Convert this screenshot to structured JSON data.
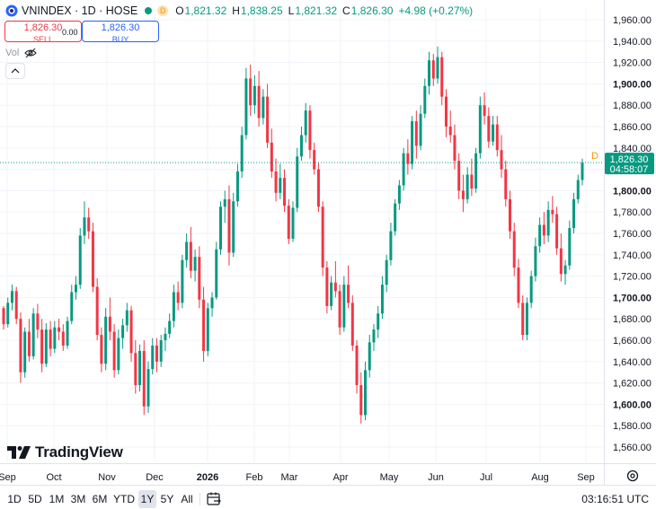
{
  "header": {
    "symbol": "VNINDEX · 1D · HOSE",
    "market_status_badge": "D",
    "open_label": "O",
    "open": "1,821.32",
    "high_label": "H",
    "high": "1,838.25",
    "low_label": "L",
    "low": "1,821.32",
    "close_label": "C",
    "close": "1,826.30",
    "change": "+4.98 (+0.27%)"
  },
  "trade": {
    "sell_price": "1,826.30",
    "sell_label": "SELL",
    "spread": "0.00",
    "buy_price": "1,826.30",
    "buy_label": "BUY"
  },
  "volume_label": "Vol",
  "chart_data": {
    "type": "candlestick",
    "title": "",
    "ylim": [
      1550,
      1970
    ],
    "y_ticks": [
      1560,
      1580,
      1600,
      1620,
      1640,
      1660,
      1680,
      1700,
      1720,
      1740,
      1760,
      1780,
      1800,
      1820,
      1840,
      1860,
      1880,
      1900,
      1920,
      1940,
      1960
    ],
    "y_tick_labels": [
      "1,560.00",
      "1,580.00",
      "1,600.00",
      "1,620.00",
      "1,640.00",
      "1,660.00",
      "1,680.00",
      "1,700.00",
      "1,720.00",
      "1,740.00",
      "1,760.00",
      "1,780.00",
      "1,800.00",
      "1,820.00",
      "1,840.00",
      "1,860.00",
      "1,880.00",
      "1,900.00",
      "1,920.00",
      "1,940.00",
      "1,960.00"
    ],
    "y_bold_ticks": [
      1600,
      1700,
      1800,
      1900
    ],
    "x_labels": [
      "Sep",
      "Oct",
      "Nov",
      "Dec",
      "2026",
      "Feb",
      "Mar",
      "Apr",
      "May",
      "Jun",
      "Jul",
      "Aug",
      "Sep"
    ],
    "x_bold_labels": [
      "2026"
    ],
    "last_price": "1,826.30",
    "last_value": 1826.3,
    "countdown": "04:58:07",
    "session_badge": "D",
    "up_color": "#089981",
    "down_color": "#f23645",
    "candles": [
      [
        1690,
        1692,
        1670,
        1675
      ],
      [
        1675,
        1700,
        1672,
        1695
      ],
      [
        1695,
        1712,
        1688,
        1706
      ],
      [
        1706,
        1710,
        1675,
        1680
      ],
      [
        1680,
        1686,
        1620,
        1630
      ],
      [
        1630,
        1672,
        1625,
        1668
      ],
      [
        1668,
        1680,
        1640,
        1645
      ],
      [
        1645,
        1690,
        1642,
        1685
      ],
      [
        1685,
        1694,
        1662,
        1670
      ],
      [
        1670,
        1680,
        1630,
        1638
      ],
      [
        1638,
        1676,
        1635,
        1670
      ],
      [
        1670,
        1678,
        1645,
        1652
      ],
      [
        1652,
        1678,
        1648,
        1672
      ],
      [
        1672,
        1680,
        1660,
        1668
      ],
      [
        1668,
        1675,
        1650,
        1655
      ],
      [
        1655,
        1682,
        1652,
        1678
      ],
      [
        1678,
        1712,
        1675,
        1705
      ],
      [
        1705,
        1720,
        1698,
        1712
      ],
      [
        1712,
        1765,
        1708,
        1758
      ],
      [
        1758,
        1790,
        1750,
        1775
      ],
      [
        1775,
        1784,
        1755,
        1762
      ],
      [
        1762,
        1770,
        1705,
        1710
      ],
      [
        1710,
        1718,
        1660,
        1665
      ],
      [
        1665,
        1672,
        1630,
        1638
      ],
      [
        1638,
        1690,
        1632,
        1682
      ],
      [
        1682,
        1700,
        1660,
        1668
      ],
      [
        1668,
        1675,
        1625,
        1632
      ],
      [
        1632,
        1670,
        1628,
        1662
      ],
      [
        1662,
        1680,
        1652,
        1674
      ],
      [
        1674,
        1695,
        1668,
        1688
      ],
      [
        1688,
        1692,
        1640,
        1648
      ],
      [
        1648,
        1660,
        1610,
        1618
      ],
      [
        1618,
        1656,
        1612,
        1650
      ],
      [
        1650,
        1660,
        1590,
        1598
      ],
      [
        1598,
        1640,
        1592,
        1633
      ],
      [
        1633,
        1662,
        1628,
        1655
      ],
      [
        1655,
        1662,
        1630,
        1640
      ],
      [
        1640,
        1665,
        1635,
        1660
      ],
      [
        1660,
        1672,
        1650,
        1666
      ],
      [
        1666,
        1685,
        1662,
        1678
      ],
      [
        1678,
        1712,
        1672,
        1705
      ],
      [
        1705,
        1715,
        1688,
        1695
      ],
      [
        1695,
        1740,
        1690,
        1735
      ],
      [
        1735,
        1760,
        1728,
        1752
      ],
      [
        1752,
        1766,
        1718,
        1725
      ],
      [
        1725,
        1745,
        1715,
        1738
      ],
      [
        1738,
        1748,
        1690,
        1698
      ],
      [
        1698,
        1710,
        1640,
        1650
      ],
      [
        1650,
        1695,
        1645,
        1690
      ],
      [
        1690,
        1705,
        1682,
        1700
      ],
      [
        1700,
        1752,
        1698,
        1745
      ],
      [
        1745,
        1790,
        1740,
        1785
      ],
      [
        1785,
        1800,
        1770,
        1792
      ],
      [
        1792,
        1805,
        1730,
        1742
      ],
      [
        1742,
        1798,
        1738,
        1790
      ],
      [
        1790,
        1825,
        1785,
        1818
      ],
      [
        1818,
        1860,
        1812,
        1852
      ],
      [
        1852,
        1915,
        1848,
        1905
      ],
      [
        1905,
        1918,
        1870,
        1880
      ],
      [
        1880,
        1908,
        1872,
        1898
      ],
      [
        1898,
        1912,
        1860,
        1868
      ],
      [
        1868,
        1895,
        1862,
        1888
      ],
      [
        1888,
        1900,
        1840,
        1845
      ],
      [
        1845,
        1858,
        1812,
        1818
      ],
      [
        1818,
        1830,
        1790,
        1798
      ],
      [
        1798,
        1825,
        1792,
        1812
      ],
      [
        1812,
        1820,
        1780,
        1786
      ],
      [
        1786,
        1792,
        1750,
        1755
      ],
      [
        1755,
        1790,
        1752,
        1784
      ],
      [
        1784,
        1840,
        1780,
        1832
      ],
      [
        1832,
        1860,
        1828,
        1852
      ],
      [
        1852,
        1882,
        1845,
        1875
      ],
      [
        1875,
        1880,
        1830,
        1838
      ],
      [
        1838,
        1845,
        1815,
        1820
      ],
      [
        1820,
        1826,
        1780,
        1785
      ],
      [
        1785,
        1790,
        1720,
        1728
      ],
      [
        1728,
        1734,
        1685,
        1692
      ],
      [
        1692,
        1720,
        1688,
        1714
      ],
      [
        1714,
        1734,
        1700,
        1706
      ],
      [
        1706,
        1712,
        1665,
        1672
      ],
      [
        1672,
        1720,
        1668,
        1712
      ],
      [
        1712,
        1730,
        1690,
        1695
      ],
      [
        1695,
        1702,
        1650,
        1655
      ],
      [
        1655,
        1660,
        1610,
        1618
      ],
      [
        1618,
        1630,
        1582,
        1590
      ],
      [
        1590,
        1640,
        1585,
        1632
      ],
      [
        1632,
        1665,
        1625,
        1658
      ],
      [
        1658,
        1675,
        1650,
        1670
      ],
      [
        1670,
        1692,
        1662,
        1685
      ],
      [
        1685,
        1720,
        1680,
        1712
      ],
      [
        1712,
        1740,
        1705,
        1735
      ],
      [
        1735,
        1770,
        1730,
        1762
      ],
      [
        1762,
        1792,
        1758,
        1788
      ],
      [
        1788,
        1810,
        1782,
        1805
      ],
      [
        1805,
        1840,
        1800,
        1835
      ],
      [
        1835,
        1848,
        1815,
        1825
      ],
      [
        1825,
        1870,
        1820,
        1865
      ],
      [
        1865,
        1875,
        1830,
        1842
      ],
      [
        1842,
        1880,
        1838,
        1872
      ],
      [
        1872,
        1905,
        1868,
        1898
      ],
      [
        1898,
        1930,
        1890,
        1922
      ],
      [
        1922,
        1928,
        1898,
        1905
      ],
      [
        1905,
        1935,
        1900,
        1925
      ],
      [
        1925,
        1930,
        1880,
        1888
      ],
      [
        1888,
        1895,
        1850,
        1860
      ],
      [
        1860,
        1875,
        1845,
        1852
      ],
      [
        1852,
        1862,
        1820,
        1828
      ],
      [
        1828,
        1835,
        1792,
        1800
      ],
      [
        1800,
        1815,
        1780,
        1792
      ],
      [
        1792,
        1822,
        1788,
        1815
      ],
      [
        1815,
        1830,
        1795,
        1802
      ],
      [
        1802,
        1840,
        1798,
        1835
      ],
      [
        1835,
        1888,
        1830,
        1880
      ],
      [
        1880,
        1892,
        1862,
        1870
      ],
      [
        1870,
        1878,
        1840,
        1846
      ],
      [
        1846,
        1870,
        1842,
        1862
      ],
      [
        1862,
        1870,
        1832,
        1838
      ],
      [
        1838,
        1852,
        1812,
        1820
      ],
      [
        1820,
        1828,
        1785,
        1792
      ],
      [
        1792,
        1800,
        1755,
        1762
      ],
      [
        1762,
        1770,
        1720,
        1728
      ],
      [
        1728,
        1736,
        1690,
        1695
      ],
      [
        1695,
        1702,
        1660,
        1665
      ],
      [
        1665,
        1700,
        1660,
        1695
      ],
      [
        1695,
        1725,
        1690,
        1720
      ],
      [
        1720,
        1756,
        1715,
        1748
      ],
      [
        1748,
        1775,
        1742,
        1768
      ],
      [
        1768,
        1780,
        1750,
        1758
      ],
      [
        1758,
        1790,
        1752,
        1782
      ],
      [
        1782,
        1795,
        1770,
        1778
      ],
      [
        1778,
        1785,
        1740,
        1746
      ],
      [
        1746,
        1760,
        1715,
        1722
      ],
      [
        1722,
        1735,
        1712,
        1730
      ],
      [
        1730,
        1772,
        1726,
        1765
      ],
      [
        1765,
        1798,
        1760,
        1792
      ],
      [
        1792,
        1815,
        1788,
        1810
      ],
      [
        1810,
        1830,
        1805,
        1826.3
      ]
    ]
  },
  "watermark": "TradingView",
  "timeframes": [
    "1D",
    "5D",
    "1M",
    "3M",
    "6M",
    "YTD",
    "1Y",
    "5Y",
    "All"
  ],
  "active_timeframe": "1Y",
  "clock": "03:16:51 UTC"
}
